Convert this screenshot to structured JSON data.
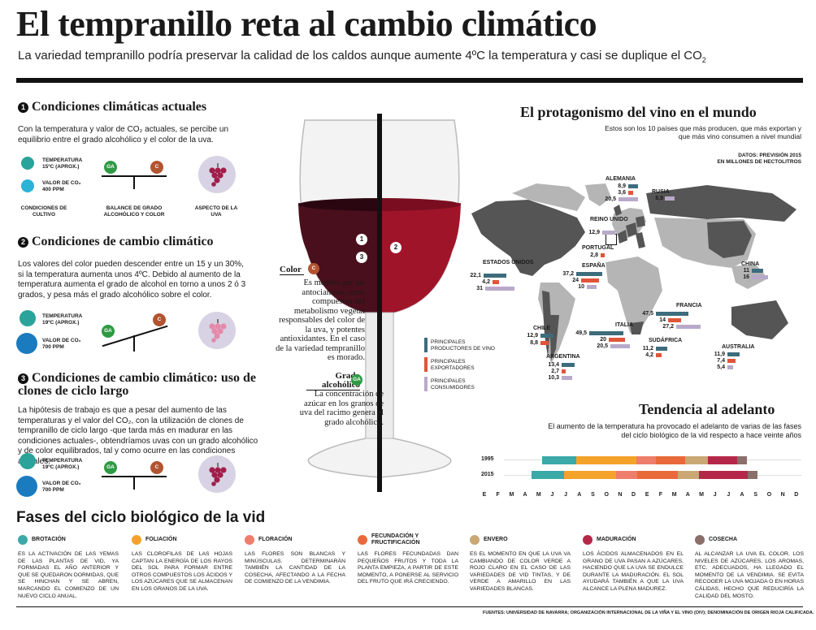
{
  "header": {
    "title": "El tempranillo reta al cambio climático",
    "subtitle": "La variedad tempranillo podría preservar la calidad de los caldos aunque aumente 4ºC la temperatura y casi se duplique el CO",
    "subtitle_sub": "2"
  },
  "colors": {
    "ga_green": "#2e9a44",
    "c_brown": "#b25430",
    "teal": "#2aa39a",
    "blue": "#1a7bbf",
    "map_dark": "#555555",
    "map_light": "#b5b5b5",
    "wine_dark": "#4a0f1c",
    "wine_red": "#a0142a",
    "prod_bar": "#3d6c7c",
    "exp_bar": "#e0553a",
    "cons_bar": "#b9a9c9",
    "grape_dark": "#a01e4a",
    "grape_light": "#e58aa9"
  },
  "sections": [
    {
      "num": "1",
      "title": "Condiciones climáticas actuales",
      "text": "Con la temperatura y valor de CO₂ actuales, se percibe un equilibrio entre el grado alcohólico y el color de la uva.",
      "temp_label": "TEMPERATURA",
      "temp_value": "15ºC (APROX.)",
      "co2_label": "VALOR DE CO₂",
      "co2_value": "400 PPM",
      "col1": "CONDICIONES DE CULTIVO",
      "col2": "BALANCE DE GRADO ALCOHÓLICO Y COLOR",
      "col3": "ASPECTO DE LA UVA",
      "ga": "GA",
      "c": "C"
    },
    {
      "num": "2",
      "title": "Condiciones de cambio climático",
      "text": "Los valores del color pueden descender entre un 15 y un 30%, si la temperatura aumenta unos 4ºC. Debido al aumento de la temperatura aumenta el grado de alcohol en torno a unos 2 ó 3 grados, y pesa más el grado alcohólico sobre el color.",
      "temp_label": "TEMPERATURA",
      "temp_value": "19ºC (APROX.)",
      "co2_label": "VALOR DE CO₂",
      "co2_value": "700 PPM",
      "ga": "GA",
      "c": "C"
    },
    {
      "num": "3",
      "title": "Condiciones de cambio climático: uso de clones de ciclo largo",
      "text": "La hipótesis de trabajo es que a pesar del aumento de las temperaturas y el valor del CO₂, con la utilización de clones de tempranillo de ciclo largo -que tarda más en madurar en las condiciones actuales-, obtendríamos uvas con un grado alcohólico y de color equilibrados, tal y como ocurre en las condiciones actuales.",
      "temp_label": "TEMPERATURA",
      "temp_value": "19ºC (APROX.)",
      "co2_label": "VALOR DE CO₂",
      "co2_value": "700 PPM",
      "ga": "GA",
      "c": "C"
    }
  ],
  "glass": {
    "marker1": "1",
    "marker2": "2",
    "marker3": "3",
    "color_title": "Color",
    "color_badge": "C",
    "color_text": "Es medido por las antocianinas, unos compuestos del metabolismo vegetal responsables del color de la uva, y potentes antioxidantes. En el caso de la variedad tempranillo es morado.",
    "grado_title": "Grado alcohólico",
    "grado_badge": "GA",
    "grado_text": "La concentración de azúcar en los granos de uva del racimo genera el grado alcohólico."
  },
  "map": {
    "title": "El protagonismo del vino en el mundo",
    "subtitle": "Estos son los 10 países que más producen, que más exportan y que más vino consumen a nivel mundial",
    "source_note": "DATOS: PREVISIÓN 2015",
    "units": "EN MILLONES DE HECTOLITROS",
    "legend": [
      {
        "key": "prod",
        "label": "PRINCIPALES PRODUCTORES DE VINO"
      },
      {
        "key": "exp",
        "label": "PRINCIPALES EXPORTADORES"
      },
      {
        "key": "cons",
        "label": "PRINCIPALES CONSUMIDORES"
      }
    ],
    "countries": [
      {
        "name": "ALEMANIA",
        "values": [
          "8,9",
          "3,6",
          "20,5"
        ],
        "types": [
          "prod",
          "exp",
          "cons"
        ]
      },
      {
        "name": "RUSIA",
        "values": [
          "8,9"
        ],
        "types": [
          "cons"
        ]
      },
      {
        "name": "REINO UNIDO",
        "values": [
          "12,9"
        ],
        "types": [
          "cons"
        ]
      },
      {
        "name": "PORTUGAL",
        "values": [
          "2,8"
        ],
        "types": [
          "exp"
        ]
      },
      {
        "name": "ESPAÑA",
        "values": [
          "37,2",
          "24",
          "10"
        ],
        "types": [
          "prod",
          "exp",
          "cons"
        ]
      },
      {
        "name": "ESTADOS UNIDOS",
        "values": [
          "22,1",
          "4,2",
          "31"
        ],
        "types": [
          "prod",
          "exp",
          "cons"
        ]
      },
      {
        "name": "CHINA",
        "values": [
          "11",
          "16"
        ],
        "types": [
          "prod",
          "cons"
        ]
      },
      {
        "name": "FRANCIA",
        "values": [
          "47,5",
          "14",
          "27,2"
        ],
        "types": [
          "prod",
          "exp",
          "cons"
        ]
      },
      {
        "name": "ITALIA",
        "values": [
          "49,5",
          "20",
          "20,5"
        ],
        "types": [
          "prod",
          "exp",
          "cons"
        ]
      },
      {
        "name": "CHILE",
        "values": [
          "12,9",
          "8,8"
        ],
        "types": [
          "prod",
          "exp"
        ]
      },
      {
        "name": "SUDÁFRICA",
        "values": [
          "11,2",
          "4,2"
        ],
        "types": [
          "prod",
          "exp"
        ]
      },
      {
        "name": "ARGENTINA",
        "values": [
          "13,4",
          "2,7",
          "10,3"
        ],
        "types": [
          "prod",
          "exp",
          "cons"
        ]
      },
      {
        "name": "AUSTRALIA",
        "values": [
          "11,9",
          "7,4",
          "5,4"
        ],
        "types": [
          "prod",
          "exp",
          "cons"
        ]
      }
    ]
  },
  "trend": {
    "title": "Tendencia al adelanto",
    "subtitle": "El aumento de la temperatura ha provocado el adelanto de varias de las fases del ciclo biológico de la vid respecto a hace veinte años",
    "row1": "1995",
    "row2": "2015",
    "months": [
      "E",
      "F",
      "M",
      "A",
      "M",
      "J",
      "J",
      "A",
      "S",
      "O",
      "N",
      "D",
      "E",
      "F",
      "M",
      "A",
      "M",
      "J",
      "J",
      "A",
      "S",
      "O",
      "N",
      "D"
    ]
  },
  "phases": {
    "title": "Fases del ciclo biológico de la vid",
    "items": [
      {
        "name": "BROTACIÓN",
        "text": "Es la activación de las yemas de las plantas de vid, ya formadas el año anterior y que se quedaron dormidas, que se hinchan y se abren, marcando el comienzo de un nuevo ciclo anual.",
        "color": "#3aa9a8",
        "icon": "sprout-icon"
      },
      {
        "name": "FOLIACIÓN",
        "text": "Las clorofilas de las hojas captan la energía de los rayos del sol para formar entre otros compuestos los ácidos y los azúcares que se almacenan en los granos de la uva.",
        "color": "#f4a22a",
        "icon": "sun-icon"
      },
      {
        "name": "FLORACIÓN",
        "text": "Las flores son blancas y minúsculas. Determinarán también la cantidad de la cosecha, afectando a la fecha de comienzo de la vendimia.",
        "color": "#ef7d6c",
        "icon": "flower-icon"
      },
      {
        "name": "FECUNDACIÓN Y FRUCTIFICACIÓN",
        "text": "Las flores fecundadas dan pequeños frutos y toda la planta empieza, a partir de este momento, a ponerse al servicio del fruto que irá creciendo.",
        "color": "#e86a3a",
        "icon": "fruit-icon"
      },
      {
        "name": "ENVERO",
        "text": "Es el momento en que la uva va cambiando de color verde a rojo claro en el caso de las variedades de vid tintas, y de verde a amarillo en las variedades blancas.",
        "color": "#c9a874",
        "icon": "grape-icon"
      },
      {
        "name": "MADURACIÓN",
        "text": "Los ácidos almacenados en el grano de uva pasan a azúcares, haciendo que la uva se endulce durante la maduración. El sol ayudará también a que la uva alcance la plena madurez.",
        "color": "#b52748",
        "icon": "heart-grape-icon"
      },
      {
        "name": "COSECHA",
        "text": "Al alcanzar la uva el color, los niveles de azúcares, los aromas, etc. adecuados, ha llegado el momento de la vendimia. Se evita recoger la uva mojada o en horas cálidas, hecho que reduciría la calidad del mosto.",
        "color": "#8a6f6a",
        "icon": "basket-icon"
      }
    ]
  },
  "footer": {
    "sources_label": "FUENTES:",
    "sources": "UNIVERSIDAD DE NAVARRA; ORGANIZACIÓN INTERNACIONAL DE LA VIÑA Y EL VINO (OIV); DENOMINACIÓN DE ORIGEN RIOJA CALIFICADA."
  }
}
